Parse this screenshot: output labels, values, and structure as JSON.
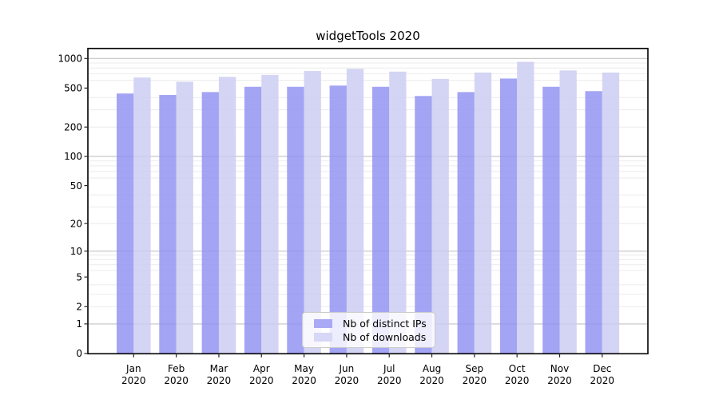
{
  "title": "widgetTools 2020",
  "legend": {
    "items": [
      {
        "label": "Nb of distinct IPs",
        "color": "#a9a9f5"
      },
      {
        "label": "Nb of downloads",
        "color": "#d7d7f7"
      }
    ]
  },
  "chart_data": {
    "type": "bar",
    "title": "widgetTools 2020",
    "categories": [
      "Jan 2020",
      "Feb 2020",
      "Mar 2020",
      "Apr 2020",
      "May 2020",
      "Jun 2020",
      "Jul 2020",
      "Aug 2020",
      "Sep 2020",
      "Oct 2020",
      "Nov 2020",
      "Dec 2020"
    ],
    "month_labels": [
      "Jan",
      "Feb",
      "Mar",
      "Apr",
      "May",
      "Jun",
      "Jul",
      "Aug",
      "Sep",
      "Oct",
      "Nov",
      "Dec"
    ],
    "year_label": "2020",
    "series": [
      {
        "name": "Nb of distinct IPs",
        "base_color": "#9090f2",
        "display_color": "#a9a9f5",
        "opacity": 0.82,
        "values": [
          440,
          425,
          455,
          515,
          515,
          530,
          515,
          415,
          455,
          625,
          515,
          465
        ]
      },
      {
        "name": "Nb of downloads",
        "base_color": "#cbcbf2",
        "display_color": "#d7d7f7",
        "opacity": 0.82,
        "values": [
          640,
          580,
          650,
          680,
          745,
          785,
          735,
          620,
          720,
          925,
          755,
          720
        ]
      }
    ],
    "yscale": "log1p",
    "yticks": [
      0,
      1,
      2,
      5,
      10,
      20,
      50,
      100,
      200,
      500,
      1000
    ],
    "ytick_labels": [
      "0",
      "1",
      "2",
      "5",
      "10",
      "20",
      "50",
      "100",
      "200",
      "500",
      "1000"
    ],
    "major_grid_values": [
      1,
      10,
      100,
      1000
    ],
    "minor_grid_values": [
      2,
      3,
      4,
      6,
      7,
      8,
      9,
      20,
      30,
      40,
      60,
      70,
      80,
      90,
      200,
      300,
      400,
      600,
      700,
      800,
      900
    ],
    "ylim": [
      0,
      1266
    ],
    "grid": "both",
    "legend_position": "lower center",
    "colors": {
      "background": "#ffffff",
      "frame": "#000000",
      "tick": "#222222",
      "text": "#000000",
      "grid_major": "#c3c3c3",
      "grid_minor": "#ebebeb"
    }
  }
}
